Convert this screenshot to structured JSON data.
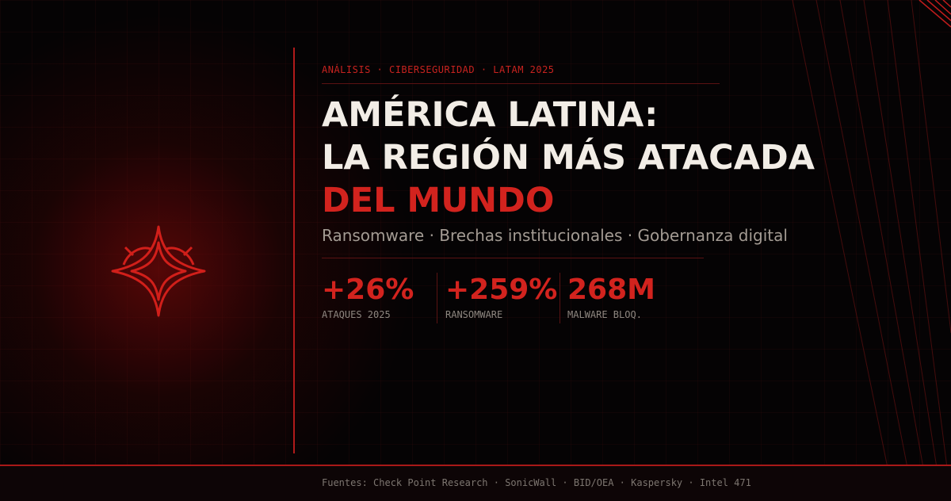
{
  "kicker": "ANÁLISIS · CIBERSEGURIDAD · LATAM 2025",
  "title": {
    "line1": "AMÉRICA LATINA:",
    "line2": "LA REGIÓN MÁS ATACADA",
    "line3": "DEL MUNDO"
  },
  "subtitle": "Ransomware · Brechas institucionales · Gobernanza digital",
  "stats": [
    {
      "value": "+26%",
      "label": "ATAQUES 2025"
    },
    {
      "value": "+259%",
      "label": "RANSOMWARE"
    },
    {
      "value": "268M",
      "label": "MALWARE BLOQ."
    }
  ],
  "sources": "Fuentes: Check Point Research · SonicWall · BID/OEA · Kaspersky · Intel 471",
  "colors": {
    "accent": "#d2231e",
    "background": "#050304",
    "title_text": "#f2ede6",
    "muted_text": "#a39b93"
  },
  "icons": {
    "emblem": "red-star-shield-emblem"
  }
}
